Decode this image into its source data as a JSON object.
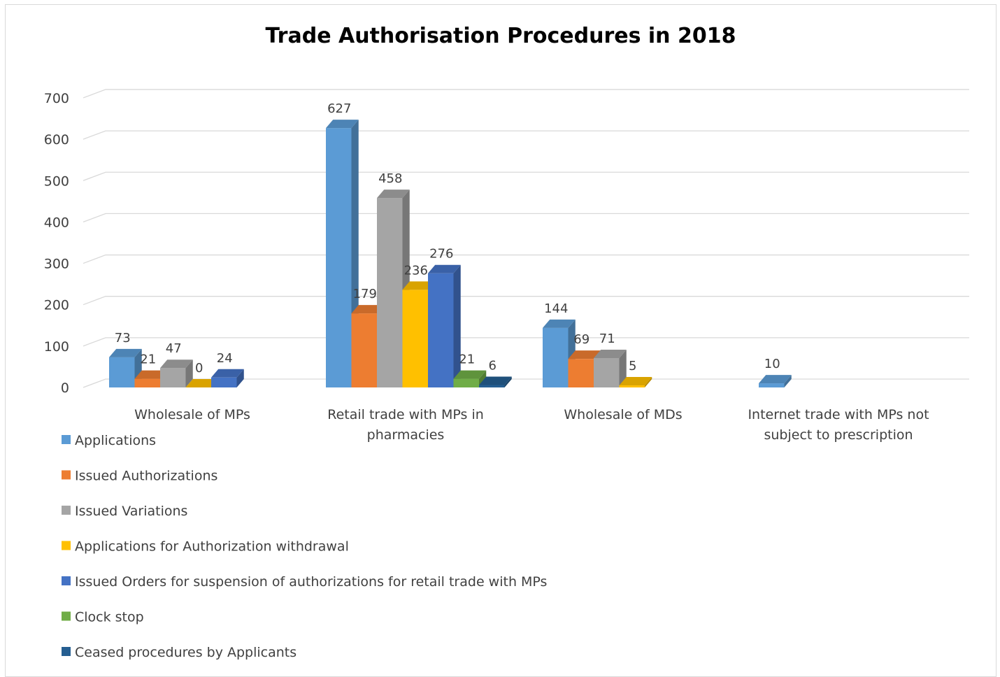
{
  "chart_data": {
    "type": "bar",
    "title": "Trade Authorisation Procedures in 2018",
    "categories": [
      "Wholesale of MPs",
      "Retail trade with MPs in pharmacies",
      "Wholesale of MDs",
      "Internet trade with MPs not subject to prescription"
    ],
    "category_lines": [
      [
        "Wholesale of MPs"
      ],
      [
        "Retail trade with MPs in",
        "pharmacies"
      ],
      [
        "Wholesale of MDs"
      ],
      [
        "Internet trade with MPs not",
        "subject to prescription"
      ]
    ],
    "ylim": [
      0,
      700
    ],
    "yticks": [
      0,
      100,
      200,
      300,
      400,
      500,
      600,
      700
    ],
    "grid": true,
    "legend_position": "bottom-left",
    "series": [
      {
        "name": "Applications",
        "color": "#5b9bd5",
        "values": [
          73,
          627,
          144,
          10
        ]
      },
      {
        "name": "Issued Authorizations",
        "color": "#ed7d31",
        "values": [
          21,
          179,
          69,
          null
        ]
      },
      {
        "name": "Issued Variations",
        "color": "#a5a5a5",
        "values": [
          47,
          458,
          71,
          null
        ]
      },
      {
        "name": "Applications for Authorization withdrawal",
        "color": "#ffc000",
        "values": [
          0,
          236,
          5,
          null
        ]
      },
      {
        "name": "Issued Orders for suspension of authorizations for retail trade with MPs",
        "color": "#4472c4",
        "values": [
          24,
          276,
          null,
          null
        ]
      },
      {
        "name": "Clock stop",
        "color": "#70ad47",
        "values": [
          null,
          21,
          null,
          null
        ]
      },
      {
        "name": "Ceased procedures by Applicants",
        "color": "#255e91",
        "values": [
          null,
          6,
          null,
          null
        ]
      }
    ]
  }
}
